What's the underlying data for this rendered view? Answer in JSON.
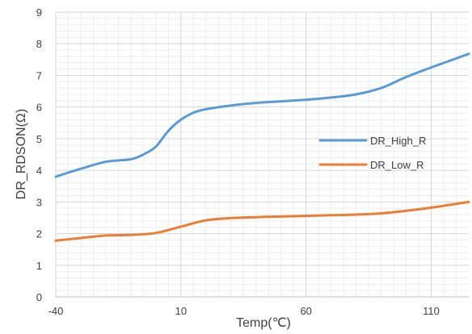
{
  "chart_data": {
    "type": "line",
    "title": "",
    "xlabel": "Temp(℃)",
    "ylabel": "DR_RDSON(Ω)",
    "xlim": [
      -40,
      125
    ],
    "ylim": [
      0,
      9
    ],
    "x_ticks": [
      "-40",
      "10",
      "60",
      "110"
    ],
    "y_ticks": [
      "0",
      "1",
      "2",
      "3",
      "4",
      "5",
      "6",
      "7",
      "8",
      "9"
    ],
    "grid": true,
    "legend_position": "right",
    "series": [
      {
        "name": "DR_High_R",
        "color": "#5B9BD5",
        "x": [
          -40,
          -30,
          -20,
          -10,
          -5,
          0,
          5,
          10,
          15,
          20,
          30,
          40,
          50,
          60,
          70,
          80,
          90,
          100,
          110,
          125
        ],
        "y": [
          3.8,
          4.05,
          4.27,
          4.35,
          4.5,
          4.75,
          5.25,
          5.6,
          5.82,
          5.93,
          6.05,
          6.13,
          6.18,
          6.23,
          6.3,
          6.4,
          6.6,
          6.95,
          7.25,
          7.68
        ]
      },
      {
        "name": "DR_Low_R",
        "color": "#ED7D31",
        "x": [
          -40,
          -30,
          -20,
          -10,
          0,
          10,
          20,
          30,
          40,
          50,
          60,
          70,
          80,
          90,
          100,
          110,
          125
        ],
        "y": [
          1.78,
          1.86,
          1.94,
          1.96,
          2.02,
          2.22,
          2.42,
          2.49,
          2.52,
          2.54,
          2.56,
          2.58,
          2.6,
          2.64,
          2.72,
          2.82,
          3.0
        ]
      }
    ]
  }
}
